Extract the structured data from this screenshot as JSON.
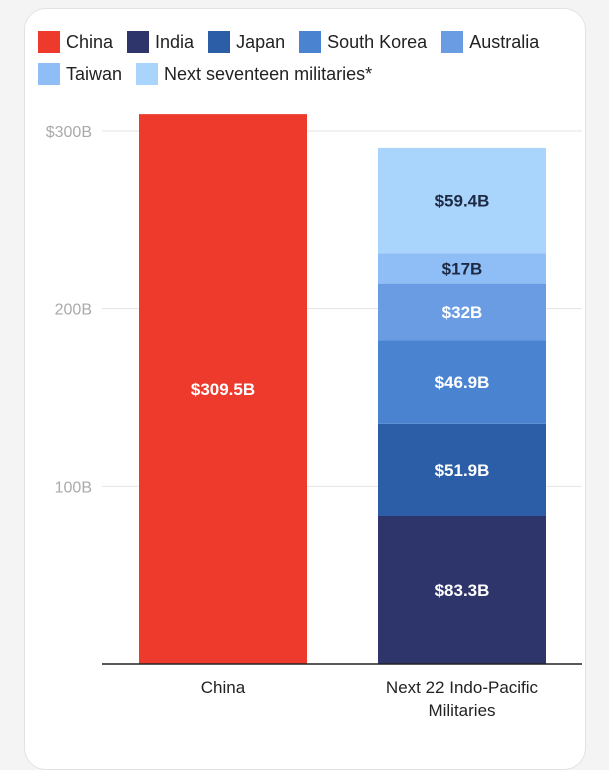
{
  "chart_data": {
    "type": "bar",
    "stacked": true,
    "categories": [
      "China",
      "Next 22 Indo-Pacific Militaries"
    ],
    "category_lines": [
      [
        "China"
      ],
      [
        "Next 22 Indo-Pacific",
        "Militaries"
      ]
    ],
    "series": [
      {
        "name": "China",
        "color": "#ee3a2c",
        "values": [
          309.5,
          null
        ],
        "labels": [
          "$309.5B",
          ""
        ]
      },
      {
        "name": "India",
        "color": "#2d356b",
        "values": [
          null,
          83.3
        ],
        "labels": [
          "",
          "$83.3B"
        ]
      },
      {
        "name": "Japan",
        "color": "#2b5ea6",
        "values": [
          null,
          51.9
        ],
        "labels": [
          "",
          "$51.9B"
        ]
      },
      {
        "name": "South Korea",
        "color": "#4a84d1",
        "values": [
          null,
          46.9
        ],
        "labels": [
          "",
          "$46.9B"
        ]
      },
      {
        "name": "Australia",
        "color": "#6a9ce3",
        "values": [
          null,
          32
        ],
        "labels": [
          "",
          "$32B"
        ]
      },
      {
        "name": "Taiwan",
        "color": "#8fbdf5",
        "values": [
          null,
          17
        ],
        "labels": [
          "",
          "$17B"
        ]
      },
      {
        "name": "Next seventeen militaries*",
        "color": "#a9d4fb",
        "values": [
          null,
          59.4
        ],
        "labels": [
          "",
          "$59.4B"
        ]
      }
    ],
    "y_ticks": [
      {
        "value": 100,
        "label": "100B"
      },
      {
        "value": 200,
        "label": "200B"
      },
      {
        "value": 300,
        "label": "$300B"
      }
    ],
    "ylim": [
      0,
      300
    ],
    "grid": true,
    "legend_position": "top"
  }
}
